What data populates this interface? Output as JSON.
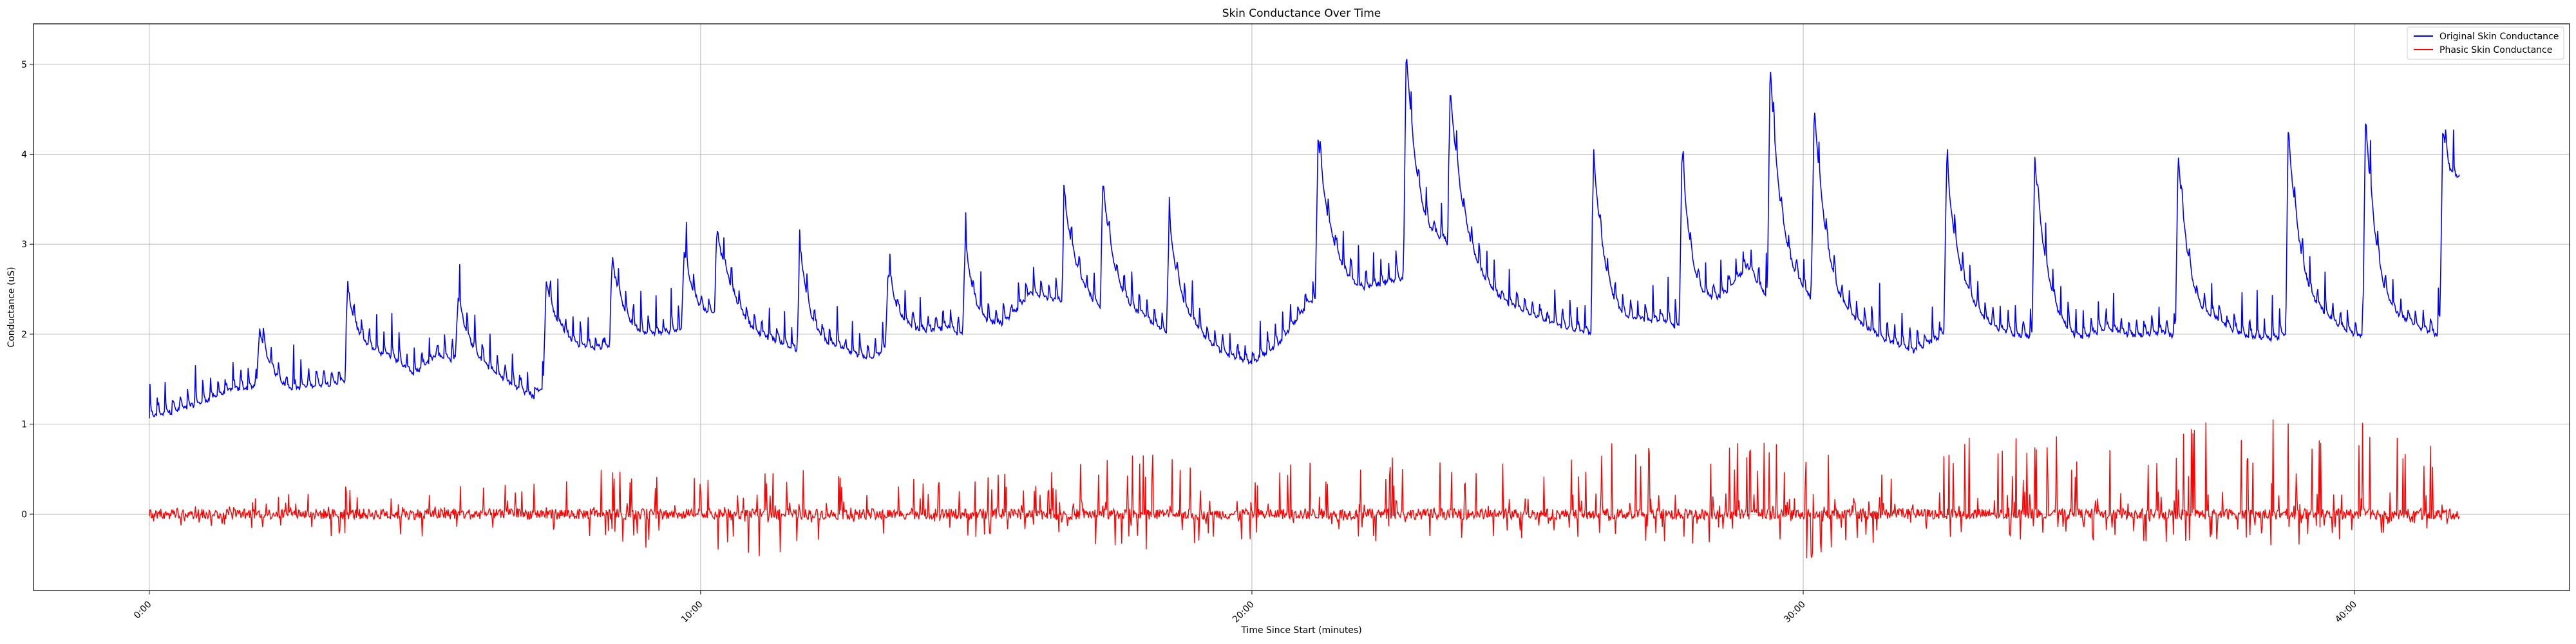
{
  "chart_data": {
    "type": "line",
    "title": "Skin Conductance  Over Time",
    "xlabel": "Time Since Start (minutes)",
    "ylabel": "Conductance (uS)",
    "xlim": [
      -2.1,
      43.9
    ],
    "ylim": [
      -0.85,
      5.45
    ],
    "x_ticks": [
      0,
      10,
      20,
      30,
      40
    ],
    "x_tick_labels": [
      "0:00",
      "10:00",
      "20:00",
      "30:00",
      "40:00"
    ],
    "y_ticks": [
      0,
      1,
      2,
      3,
      4,
      5
    ],
    "y_tick_labels": [
      "0",
      "1",
      "2",
      "3",
      "4",
      "5"
    ],
    "grid": true,
    "legend_position": "top-right",
    "series": [
      {
        "name": "Original Skin Conductance",
        "color": "#0000ff",
        "x": [
          0,
          0.6,
          1.0,
          1.5,
          2.0,
          2.5,
          3.0,
          3.5,
          4.0,
          4.4,
          4.8,
          5.2,
          5.7,
          6.2,
          6.6,
          7.0,
          7.5,
          8.0,
          8.5,
          9.0,
          9.5,
          10.0,
          10.5,
          11.0,
          11.5,
          12.0,
          12.5,
          13.0,
          13.5,
          14.0,
          14.5,
          15.0,
          15.5,
          16.0,
          16.5,
          17.0,
          17.5,
          18.0,
          18.5,
          19.0,
          19.5,
          20.0,
          20.5,
          21.0,
          21.5,
          22.0,
          22.5,
          23.0,
          23.5,
          24.0,
          24.5,
          25.0,
          25.5,
          26.0,
          26.5,
          27.0,
          27.5,
          28.0,
          28.5,
          29.0,
          29.5,
          30.0,
          30.5,
          31.0,
          31.5,
          32.0,
          32.5,
          33.0,
          33.5,
          34.0,
          34.5,
          35.0,
          35.5,
          36.0,
          36.5,
          37.0,
          37.5,
          38.0,
          38.5,
          39.0,
          39.5,
          40.0,
          40.5,
          41.0,
          41.5,
          41.9
        ],
        "y": [
          1.25,
          1.35,
          1.45,
          1.6,
          1.65,
          1.55,
          1.65,
          1.7,
          1.95,
          2.0,
          1.8,
          2.05,
          1.95,
          1.8,
          1.65,
          1.5,
          2.05,
          2.1,
          2.2,
          2.25,
          2.35,
          2.4,
          2.6,
          2.3,
          2.2,
          2.0,
          2.1,
          2.0,
          2.15,
          2.3,
          2.4,
          2.2,
          2.4,
          2.85,
          2.75,
          2.65,
          2.5,
          2.5,
          2.3,
          2.25,
          2.05,
          1.95,
          2.2,
          2.7,
          2.9,
          2.85,
          3.0,
          3.1,
          3.4,
          3.05,
          2.75,
          2.6,
          2.45,
          2.35,
          2.3,
          2.45,
          2.5,
          2.3,
          2.7,
          3.2,
          2.6,
          2.7,
          2.5,
          2.4,
          2.25,
          2.1,
          2.3,
          2.5,
          2.35,
          2.3,
          2.25,
          2.2,
          2.4,
          2.3,
          2.35,
          2.2,
          2.4,
          2.3,
          2.25,
          2.4,
          2.45,
          2.3,
          2.25,
          2.4,
          2.3,
          3.7
        ],
        "peaks": [
          {
            "x": 2.0,
            "y": 2.05
          },
          {
            "x": 3.6,
            "y": 2.5
          },
          {
            "x": 5.6,
            "y": 2.4
          },
          {
            "x": 7.2,
            "y": 2.6
          },
          {
            "x": 8.4,
            "y": 2.8
          },
          {
            "x": 9.7,
            "y": 2.9
          },
          {
            "x": 10.3,
            "y": 3.05
          },
          {
            "x": 11.8,
            "y": 2.95
          },
          {
            "x": 13.4,
            "y": 2.7
          },
          {
            "x": 14.8,
            "y": 3.0
          },
          {
            "x": 16.6,
            "y": 3.5
          },
          {
            "x": 17.3,
            "y": 3.6
          },
          {
            "x": 18.5,
            "y": 3.25
          },
          {
            "x": 21.2,
            "y": 4.2
          },
          {
            "x": 22.8,
            "y": 5.15
          },
          {
            "x": 23.6,
            "y": 4.6
          },
          {
            "x": 26.2,
            "y": 3.95
          },
          {
            "x": 27.8,
            "y": 3.95
          },
          {
            "x": 29.4,
            "y": 5.0
          },
          {
            "x": 30.2,
            "y": 4.45
          },
          {
            "x": 32.6,
            "y": 3.9
          },
          {
            "x": 34.2,
            "y": 3.95
          },
          {
            "x": 36.8,
            "y": 4.0
          },
          {
            "x": 38.8,
            "y": 4.25
          },
          {
            "x": 40.2,
            "y": 4.4
          },
          {
            "x": 41.6,
            "y": 4.3
          }
        ]
      },
      {
        "name": "Phasic Skin Conductance",
        "color": "#ff0000",
        "x": [
          0,
          2,
          4,
          6,
          8,
          10,
          12,
          14,
          16,
          18,
          20,
          22,
          24,
          26,
          28,
          30,
          32,
          34,
          36,
          38,
          40,
          41.9
        ],
        "y": [
          0.05,
          0.2,
          0.4,
          0.3,
          0.5,
          0.4,
          0.5,
          0.4,
          0.5,
          0.7,
          0.45,
          0.8,
          0.5,
          0.8,
          0.85,
          0.8,
          0.8,
          0.9,
          0.8,
          1.2,
          1.05,
          0.65
        ],
        "troughs_y": [
          -0.1,
          -0.2,
          -0.3,
          -0.25,
          -0.3,
          -0.5,
          -0.45,
          -0.3,
          -0.25,
          -0.4,
          -0.3,
          -0.3,
          -0.35,
          -0.3,
          -0.35,
          -0.55,
          -0.35,
          -0.3,
          -0.3,
          -0.35,
          -0.35,
          -0.1
        ]
      }
    ]
  }
}
